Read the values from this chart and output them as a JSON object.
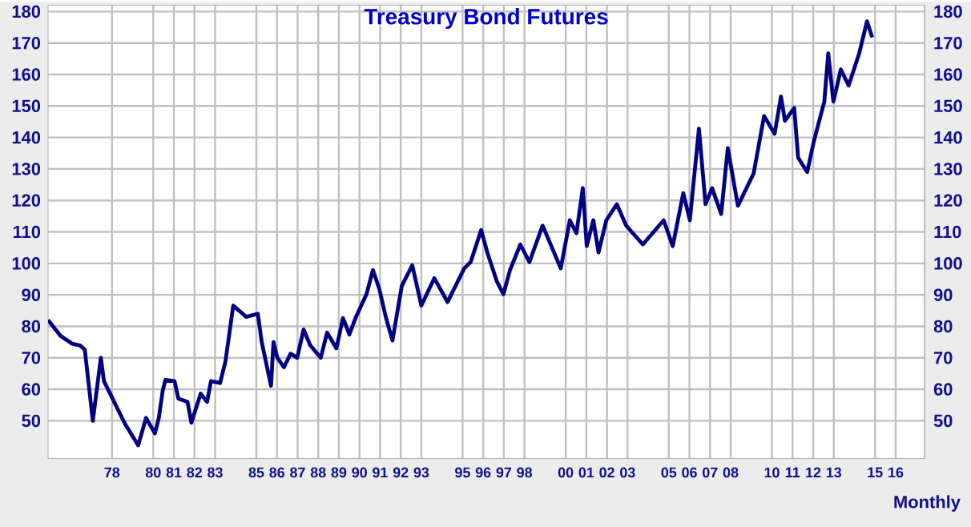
{
  "chart_data": {
    "type": "line",
    "title": "Treasury Bond Futures",
    "annotations": [
      "Monthly"
    ],
    "x": [
      1974.9,
      1975.5,
      1976.06,
      1976.45,
      1976.68,
      1977.07,
      1977.46,
      1977.61,
      1978.63,
      1979.27,
      1979.65,
      1980.08,
      1980.27,
      1980.46,
      1980.59,
      1981.03,
      1981.22,
      1981.66,
      1981.85,
      1982.3,
      1982.61,
      1982.8,
      1983.24,
      1983.5,
      1983.88,
      1984.51,
      1985.07,
      1985.26,
      1985.71,
      1985.83,
      1986.02,
      1986.34,
      1986.66,
      1986.98,
      1987.29,
      1987.61,
      1988.12,
      1988.43,
      1988.88,
      1989.2,
      1989.51,
      1989.83,
      1990.34,
      1990.65,
      1990.97,
      1991.29,
      1991.6,
      1992.05,
      1992.56,
      1993.0,
      1993.63,
      1994.27,
      1995.08,
      1995.39,
      1995.9,
      1996.22,
      1996.66,
      1996.98,
      1997.3,
      1997.8,
      1998.24,
      1998.88,
      1999.76,
      2000.2,
      2000.52,
      2000.83,
      2001.02,
      2001.34,
      2001.59,
      2001.97,
      2002.48,
      2002.93,
      2003.74,
      2004.75,
      2005.19,
      2005.7,
      2006.02,
      2006.46,
      2006.78,
      2007.1,
      2007.54,
      2007.86,
      2008.35,
      2009.11,
      2009.62,
      2010.13,
      2010.44,
      2010.63,
      2011.08,
      2011.27,
      2011.71,
      2012.03,
      2012.54,
      2012.73,
      2012.98,
      2013.34,
      2013.72,
      2014.23,
      2014.61,
      2014.86
    ],
    "series": [
      {
        "color": "#000080",
        "values": [
          82,
          77,
          74.5,
          73.9,
          72.6,
          50,
          70,
          62.6,
          49,
          42.2,
          50.9,
          46,
          50.9,
          59.6,
          63,
          62.6,
          57,
          56,
          49.4,
          58.6,
          56,
          62.6,
          62,
          68.8,
          86.6,
          83,
          84,
          75,
          61.1,
          75,
          70,
          67,
          71.3,
          70,
          79,
          74,
          70,
          78,
          73,
          82.6,
          77.4,
          83,
          90.2,
          97.9,
          91.7,
          82.6,
          75.5,
          92.8,
          99.4,
          86.6,
          95.3,
          87.7,
          98.4,
          100.4,
          110.6,
          103,
          94.3,
          90.2,
          97.9,
          106,
          100.4,
          112,
          98.4,
          113.7,
          109.6,
          123.9,
          105.5,
          113.7,
          103.5,
          113.7,
          118.8,
          112,
          106,
          113.7,
          105.5,
          122.3,
          113.7,
          142.8,
          118.8,
          123.9,
          115.7,
          136.6,
          118.3,
          128.5,
          146.8,
          141.2,
          153,
          145.3,
          149.4,
          133.6,
          129,
          138.7,
          151.4,
          166.7,
          151.4,
          161.6,
          156.5,
          166.7,
          176.9,
          171.8
        ]
      }
    ],
    "xlim": [
      1974.9,
      2017.4
    ],
    "xticks": [
      {
        "value": 1978,
        "label": "78"
      },
      {
        "value": 1980,
        "label": "80"
      },
      {
        "value": 1981,
        "label": "81"
      },
      {
        "value": 1982,
        "label": "82"
      },
      {
        "value": 1983,
        "label": "83"
      },
      {
        "value": 1985,
        "label": "85"
      },
      {
        "value": 1986,
        "label": "86"
      },
      {
        "value": 1987,
        "label": "87"
      },
      {
        "value": 1988,
        "label": "88"
      },
      {
        "value": 1989,
        "label": "89"
      },
      {
        "value": 1990,
        "label": "90"
      },
      {
        "value": 1991,
        "label": "91"
      },
      {
        "value": 1992,
        "label": "92"
      },
      {
        "value": 1993,
        "label": "93"
      },
      {
        "value": 1995,
        "label": "95"
      },
      {
        "value": 1996,
        "label": "96"
      },
      {
        "value": 1997,
        "label": "97"
      },
      {
        "value": 1998,
        "label": "98"
      },
      {
        "value": 2000,
        "label": "00"
      },
      {
        "value": 2001,
        "label": "01"
      },
      {
        "value": 2002,
        "label": "02"
      },
      {
        "value": 2003,
        "label": "03"
      },
      {
        "value": 2005,
        "label": "05"
      },
      {
        "value": 2006,
        "label": "06"
      },
      {
        "value": 2007,
        "label": "07"
      },
      {
        "value": 2008,
        "label": "08"
      },
      {
        "value": 2010,
        "label": "10"
      },
      {
        "value": 2011,
        "label": "11"
      },
      {
        "value": 2012,
        "label": "12"
      },
      {
        "value": 2013,
        "label": "13"
      },
      {
        "value": 2015,
        "label": "15"
      },
      {
        "value": 2016,
        "label": "16"
      }
    ],
    "ylim": [
      38,
      182
    ],
    "yticks": [
      50,
      60,
      70,
      80,
      90,
      100,
      110,
      120,
      130,
      140,
      150,
      160,
      170,
      180
    ],
    "y2lim": [
      38,
      182
    ],
    "y2ticks": [
      50,
      60,
      70,
      80,
      90,
      100,
      110,
      120,
      130,
      140,
      150,
      160,
      170,
      180
    ],
    "grid": true,
    "marker": "none",
    "line_style": "solid"
  }
}
